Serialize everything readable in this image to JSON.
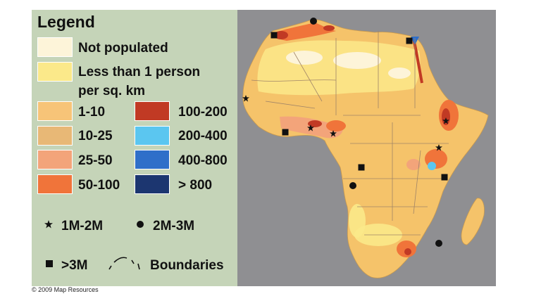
{
  "legend": {
    "title": "Legend",
    "density_classes": [
      {
        "label": "Not populated",
        "color": "#fdf4d9"
      },
      {
        "label": "Less than 1 person",
        "label2": "per sq.  km",
        "color": "#fbe98a"
      },
      {
        "label": "1-10",
        "color": "#f7c478"
      },
      {
        "label": "10-25",
        "color": "#e8b876"
      },
      {
        "label": "25-50",
        "color": "#f3a47a"
      },
      {
        "label": "50-100",
        "color": "#f0743a"
      },
      {
        "label": "100-200",
        "color": "#c13a24"
      },
      {
        "label": "200-400",
        "color": "#5bc6f0"
      },
      {
        "label": "400-800",
        "color": "#2f6fc9"
      },
      {
        "label": "> 800",
        "color": "#1c3670"
      }
    ],
    "city_symbols": [
      {
        "label": "1M-2M",
        "icon": "star-icon"
      },
      {
        "label": "2M-3M",
        "icon": "circle-icon"
      },
      {
        "label": ">3M",
        "icon": "square-icon"
      }
    ],
    "boundaries_label": "Boundaries"
  },
  "map": {
    "ocean_color": "#8f8f92",
    "land_base_color": "#f5c36a",
    "cities": [
      {
        "icon": "star-icon",
        "size_class": "1M-2M"
      },
      {
        "icon": "star-icon",
        "size_class": "1M-2M"
      },
      {
        "icon": "star-icon",
        "size_class": "1M-2M"
      },
      {
        "icon": "star-icon",
        "size_class": "1M-2M"
      },
      {
        "icon": "star-icon",
        "size_class": "1M-2M"
      },
      {
        "icon": "circle-icon",
        "size_class": "2M-3M"
      },
      {
        "icon": "circle-icon",
        "size_class": "2M-3M"
      },
      {
        "icon": "circle-icon",
        "size_class": "2M-3M"
      },
      {
        "icon": "square-icon",
        "size_class": ">3M"
      },
      {
        "icon": "square-icon",
        "size_class": ">3M"
      },
      {
        "icon": "square-icon",
        "size_class": ">3M"
      },
      {
        "icon": "square-icon",
        "size_class": ">3M"
      },
      {
        "icon": "square-icon",
        "size_class": ">3M"
      }
    ]
  },
  "copyright": "© 2009 Map Resources"
}
